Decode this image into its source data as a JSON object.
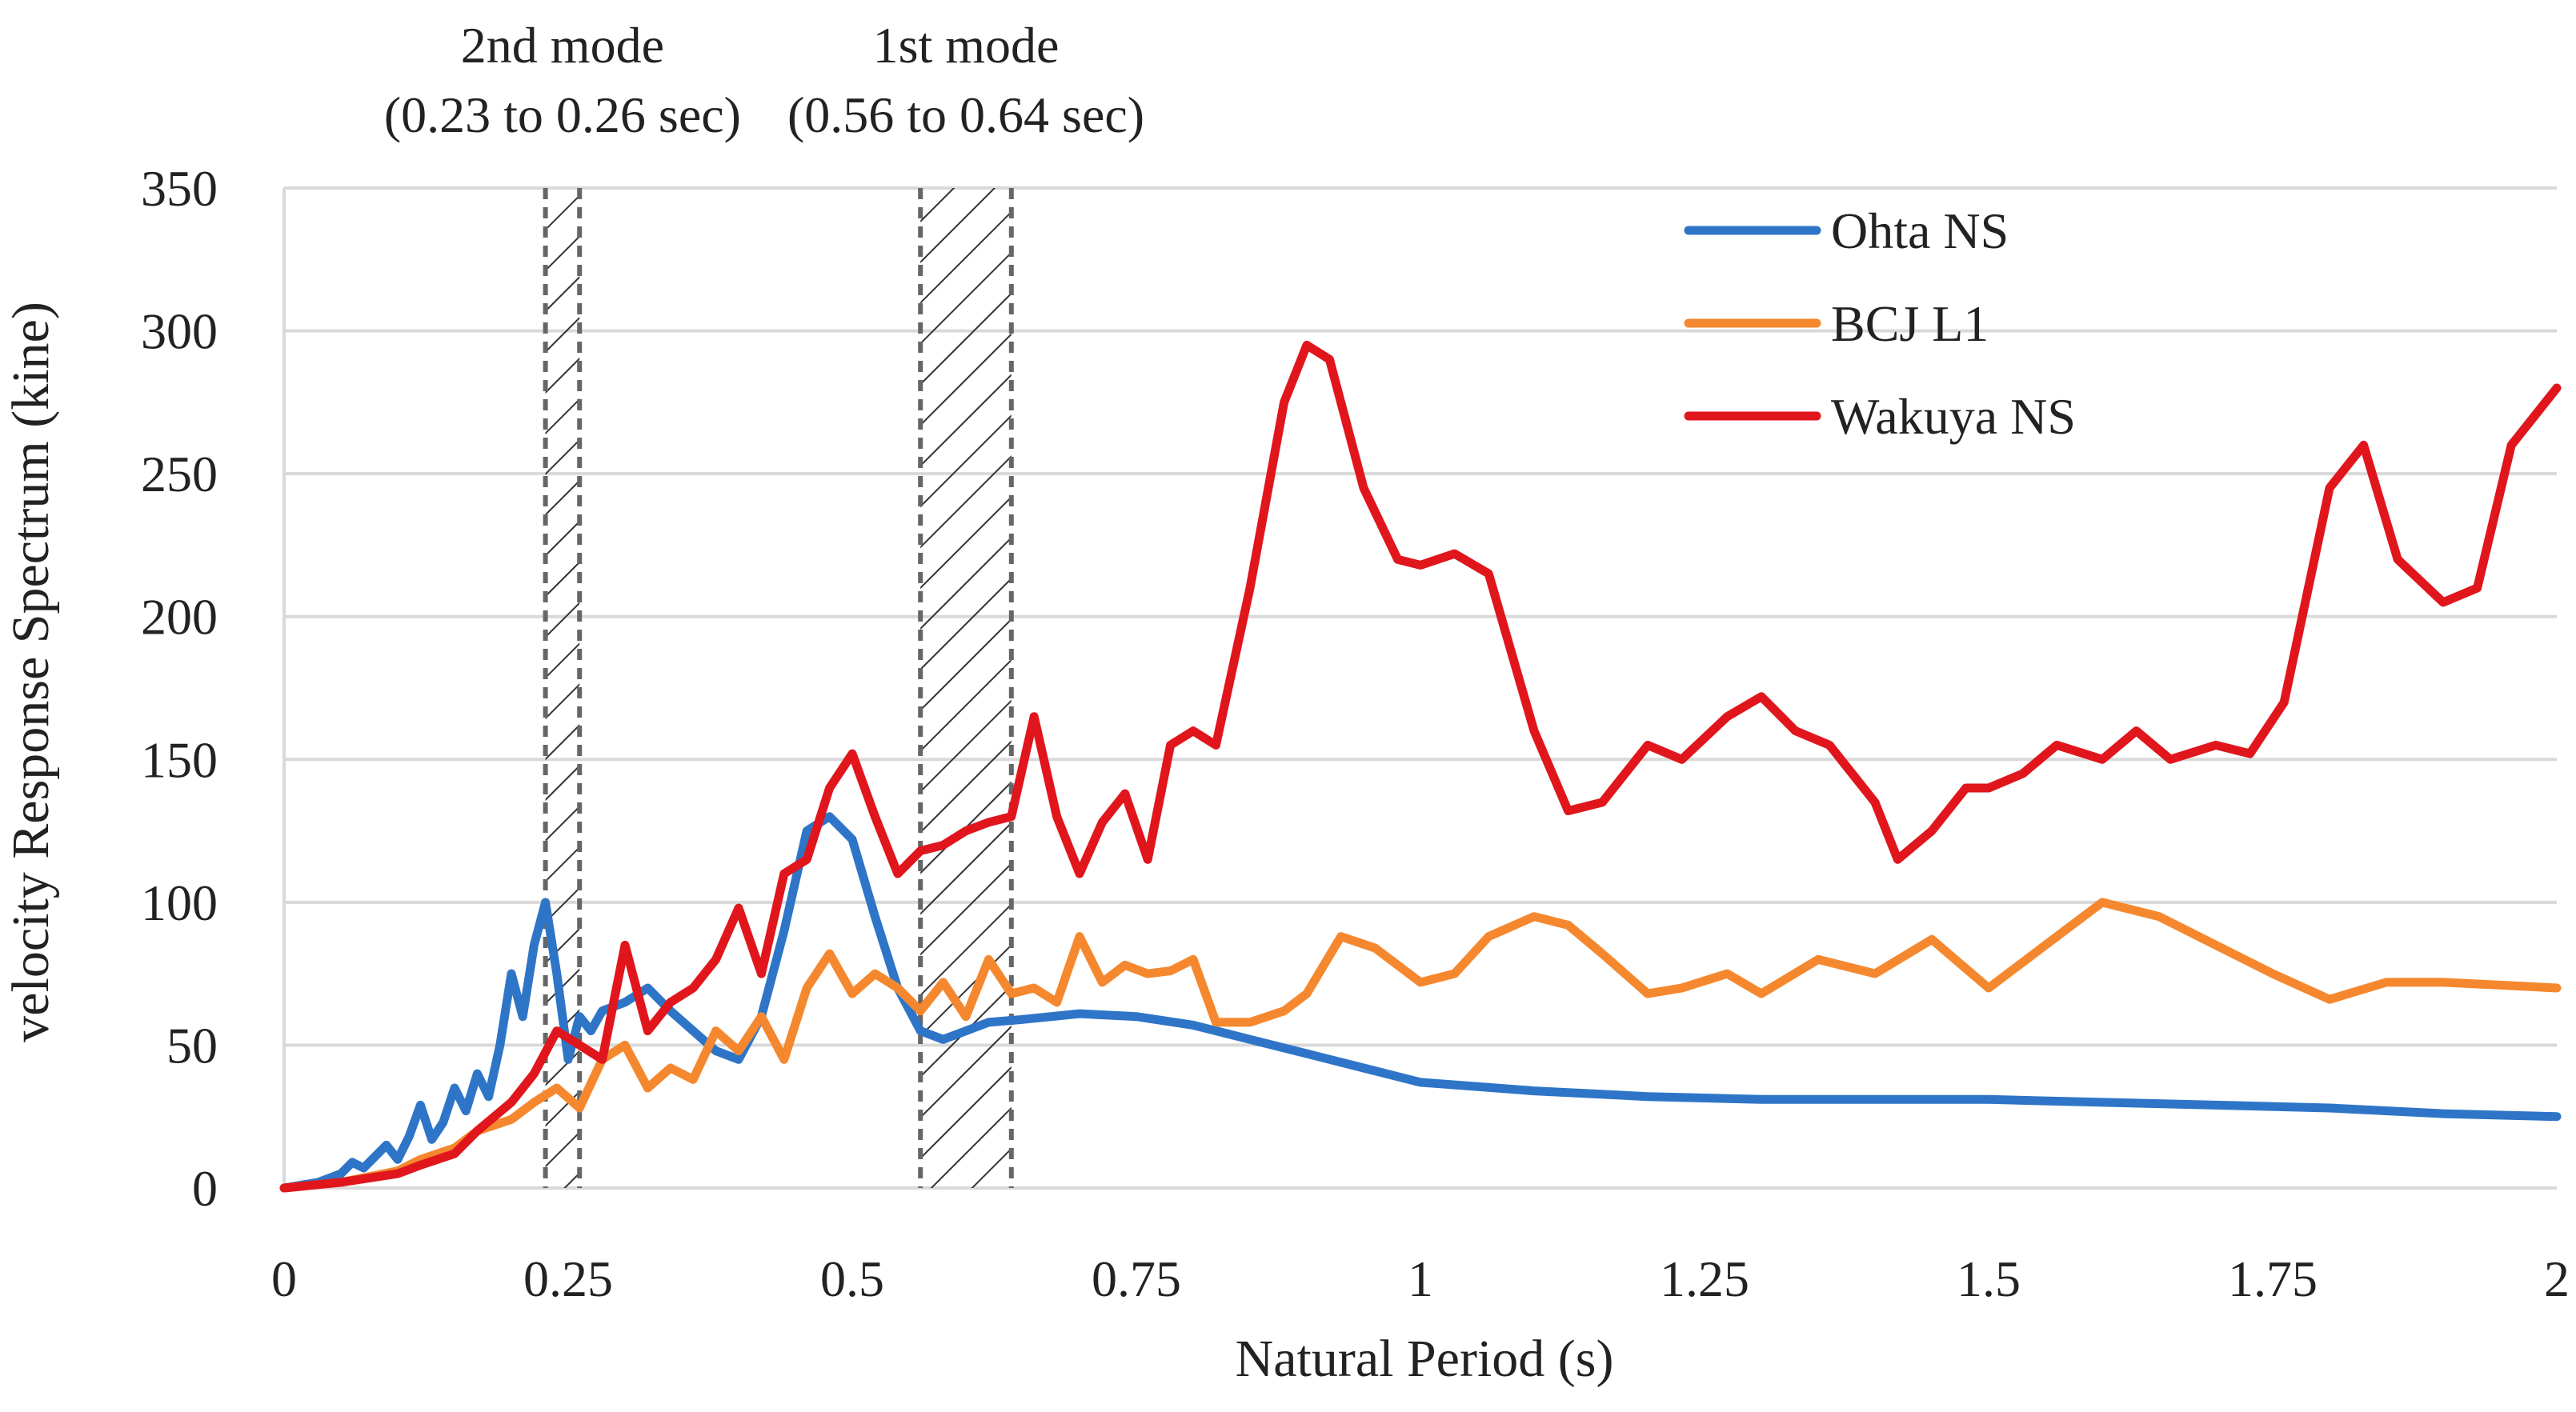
{
  "chart_data": {
    "type": "line",
    "xlabel": "Natural Period (s)",
    "ylabel": "velocity Response Spectrum (kine)",
    "xlim": [
      0,
      2
    ],
    "ylim": [
      0,
      350
    ],
    "xticks": [
      0,
      0.25,
      0.5,
      0.75,
      1,
      1.25,
      1.5,
      1.75,
      2
    ],
    "xtick_labels": [
      "0",
      "0.25",
      "0.5",
      "0.75",
      "1",
      "1.25",
      "1.5",
      "1.75",
      "2"
    ],
    "yticks": [
      0,
      50,
      100,
      150,
      200,
      250,
      300,
      350
    ],
    "ytick_labels": [
      "0",
      "50",
      "100",
      "150",
      "200",
      "250",
      "300",
      "350"
    ],
    "grid": "horizontal",
    "legend_position": "top-right",
    "bands": [
      {
        "label_line1": "2nd mode",
        "label_line2": "(0.23 to 0.26 sec)",
        "start": 0.23,
        "end": 0.26
      },
      {
        "label_line1": "1st mode",
        "label_line2": "(0.56 to 0.64 sec)",
        "start": 0.56,
        "end": 0.64
      }
    ],
    "series": [
      {
        "name": "Ohta NS",
        "color": "#2e75c8",
        "x": [
          0,
          0.03,
          0.05,
          0.06,
          0.07,
          0.08,
          0.09,
          0.1,
          0.11,
          0.12,
          0.13,
          0.14,
          0.15,
          0.16,
          0.17,
          0.18,
          0.19,
          0.2,
          0.21,
          0.22,
          0.23,
          0.24,
          0.25,
          0.26,
          0.27,
          0.28,
          0.3,
          0.32,
          0.34,
          0.36,
          0.38,
          0.4,
          0.42,
          0.44,
          0.46,
          0.48,
          0.5,
          0.52,
          0.54,
          0.56,
          0.58,
          0.6,
          0.62,
          0.65,
          0.7,
          0.75,
          0.8,
          0.85,
          0.9,
          0.95,
          1.0,
          1.1,
          1.2,
          1.3,
          1.4,
          1.5,
          1.6,
          1.7,
          1.8,
          1.9,
          2.0
        ],
        "values": [
          0,
          2,
          5,
          9,
          7,
          11,
          15,
          10,
          18,
          29,
          17,
          23,
          35,
          27,
          40,
          32,
          50,
          75,
          60,
          85,
          100,
          75,
          45,
          60,
          55,
          62,
          65,
          70,
          62,
          55,
          48,
          45,
          60,
          90,
          125,
          130,
          122,
          95,
          70,
          55,
          52,
          55,
          58,
          59,
          61,
          60,
          57,
          52,
          47,
          42,
          37,
          34,
          32,
          31,
          31,
          31,
          30,
          29,
          28,
          26,
          25
        ]
      },
      {
        "name": "BCJ L1",
        "color": "#f5882e",
        "x": [
          0,
          0.05,
          0.1,
          0.12,
          0.15,
          0.17,
          0.2,
          0.22,
          0.24,
          0.26,
          0.28,
          0.3,
          0.32,
          0.34,
          0.36,
          0.38,
          0.4,
          0.42,
          0.44,
          0.46,
          0.48,
          0.5,
          0.52,
          0.54,
          0.56,
          0.58,
          0.6,
          0.62,
          0.64,
          0.66,
          0.68,
          0.7,
          0.72,
          0.74,
          0.76,
          0.78,
          0.8,
          0.82,
          0.85,
          0.88,
          0.9,
          0.93,
          0.96,
          1.0,
          1.03,
          1.06,
          1.1,
          1.13,
          1.16,
          1.2,
          1.23,
          1.27,
          1.3,
          1.35,
          1.4,
          1.45,
          1.5,
          1.55,
          1.6,
          1.65,
          1.7,
          1.75,
          1.8,
          1.85,
          1.9,
          1.95,
          2.0
        ],
        "values": [
          0,
          2,
          6,
          10,
          14,
          20,
          24,
          30,
          35,
          28,
          45,
          50,
          35,
          42,
          38,
          55,
          48,
          60,
          45,
          70,
          82,
          68,
          75,
          70,
          62,
          72,
          60,
          80,
          68,
          70,
          65,
          88,
          72,
          78,
          75,
          76,
          80,
          58,
          58,
          62,
          68,
          88,
          84,
          72,
          75,
          88,
          95,
          92,
          82,
          68,
          70,
          75,
          68,
          80,
          75,
          87,
          70,
          85,
          100,
          95,
          85,
          75,
          66,
          72,
          72,
          71,
          70
        ]
      },
      {
        "name": "Wakuya NS",
        "color": "#e0161c",
        "x": [
          0,
          0.05,
          0.1,
          0.12,
          0.15,
          0.17,
          0.2,
          0.22,
          0.24,
          0.26,
          0.28,
          0.3,
          0.32,
          0.34,
          0.36,
          0.38,
          0.4,
          0.42,
          0.44,
          0.46,
          0.48,
          0.5,
          0.52,
          0.54,
          0.56,
          0.58,
          0.6,
          0.62,
          0.64,
          0.66,
          0.68,
          0.7,
          0.72,
          0.74,
          0.76,
          0.78,
          0.8,
          0.82,
          0.85,
          0.88,
          0.9,
          0.92,
          0.95,
          0.98,
          1.0,
          1.03,
          1.06,
          1.1,
          1.13,
          1.16,
          1.2,
          1.23,
          1.27,
          1.3,
          1.33,
          1.36,
          1.4,
          1.42,
          1.45,
          1.48,
          1.5,
          1.53,
          1.56,
          1.6,
          1.63,
          1.66,
          1.7,
          1.73,
          1.76,
          1.8,
          1.83,
          1.86,
          1.9,
          1.93,
          1.96,
          2.0
        ],
        "values": [
          0,
          2,
          5,
          8,
          12,
          20,
          30,
          40,
          55,
          50,
          45,
          85,
          55,
          65,
          70,
          80,
          98,
          75,
          110,
          115,
          140,
          152,
          130,
          110,
          118,
          120,
          125,
          128,
          130,
          165,
          130,
          110,
          128,
          138,
          115,
          155,
          160,
          155,
          210,
          275,
          295,
          290,
          245,
          220,
          218,
          222,
          215,
          160,
          132,
          135,
          155,
          150,
          165,
          172,
          160,
          155,
          135,
          115,
          125,
          140,
          140,
          145,
          155,
          150,
          160,
          150,
          155,
          152,
          170,
          245,
          260,
          220,
          205,
          210,
          260,
          280
        ]
      }
    ]
  }
}
